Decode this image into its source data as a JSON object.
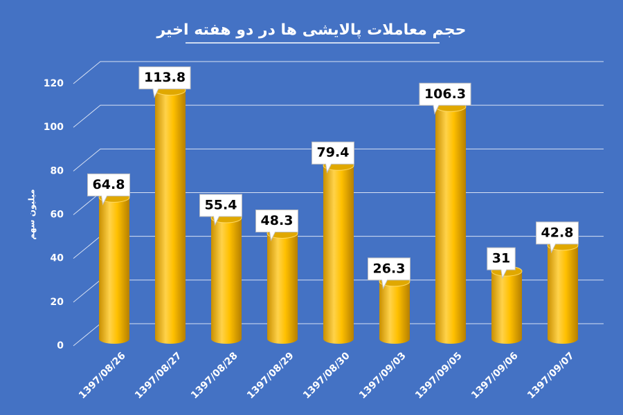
{
  "chart_data": {
    "type": "bar",
    "title": "حجم معاملات پالایشی ها در دو هفته اخیر",
    "y_label": "میلیون سهم",
    "categories": [
      "1397/08/26",
      "1397/08/27",
      "1397/08/28",
      "1397/08/29",
      "1397/08/30",
      "1397/09/03",
      "1397/09/05",
      "1397/09/06",
      "1397/09/07"
    ],
    "values": [
      64.8,
      113.8,
      55.4,
      48.3,
      79.4,
      26.3,
      106.3,
      31,
      42.8
    ],
    "color": "#ffc000",
    "ylim": [
      0,
      120
    ],
    "yticks": [
      0,
      20,
      40,
      60,
      80,
      100,
      120
    ],
    "grid": true
  }
}
